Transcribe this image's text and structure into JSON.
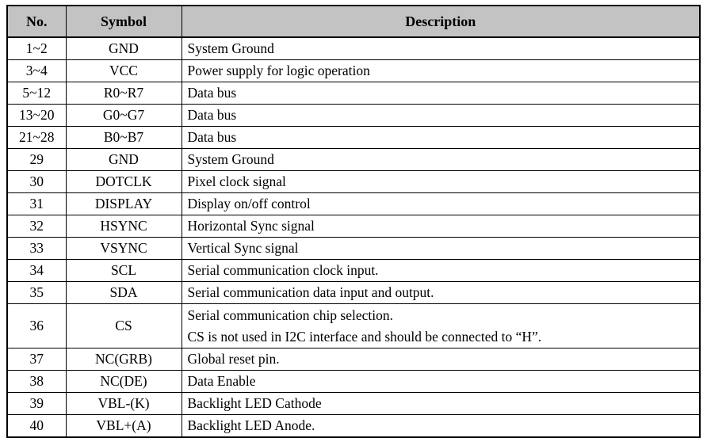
{
  "colors": {
    "page_bg": "#ffffff",
    "header_bg": "#c3c3c3",
    "border": "#000000",
    "text": "#000000"
  },
  "table": {
    "columns": [
      {
        "key": "no",
        "label": "No."
      },
      {
        "key": "symbol",
        "label": "Symbol"
      },
      {
        "key": "description",
        "label": "Description"
      }
    ],
    "rows": [
      {
        "no": "1~2",
        "symbol": "GND",
        "description": [
          "System Ground"
        ]
      },
      {
        "no": "3~4",
        "symbol": "VCC",
        "description": [
          "Power supply for logic operation"
        ]
      },
      {
        "no": "5~12",
        "symbol": "R0~R7",
        "description": [
          "Data bus"
        ]
      },
      {
        "no": "13~20",
        "symbol": "G0~G7",
        "description": [
          "Data bus"
        ]
      },
      {
        "no": "21~28",
        "symbol": "B0~B7",
        "description": [
          "Data bus"
        ]
      },
      {
        "no": "29",
        "symbol": "GND",
        "description": [
          "System Ground"
        ]
      },
      {
        "no": "30",
        "symbol": "DOTCLK",
        "description": [
          "Pixel clock signal"
        ]
      },
      {
        "no": "31",
        "symbol": "DISPLAY",
        "description": [
          "Display on/off control"
        ]
      },
      {
        "no": "32",
        "symbol": "HSYNC",
        "description": [
          "Horizontal Sync signal"
        ]
      },
      {
        "no": "33",
        "symbol": "VSYNC",
        "description": [
          "Vertical Sync signal"
        ]
      },
      {
        "no": "34",
        "symbol": "SCL",
        "description": [
          "Serial communication clock input."
        ]
      },
      {
        "no": "35",
        "symbol": "SDA",
        "description": [
          "Serial communication data input and output."
        ]
      },
      {
        "no": "36",
        "symbol": "CS",
        "description": [
          "Serial communication chip selection.",
          "CS is not used in I2C interface and should be connected to “H”."
        ]
      },
      {
        "no": "37",
        "symbol": "NC(GRB)",
        "description": [
          "Global reset pin."
        ]
      },
      {
        "no": "38",
        "symbol": "NC(DE)",
        "description": [
          "Data Enable"
        ]
      },
      {
        "no": "39",
        "symbol": "VBL-(K)",
        "description": [
          "Backlight LED Cathode"
        ]
      },
      {
        "no": "40",
        "symbol": "VBL+(A)",
        "description": [
          "Backlight LED Anode."
        ]
      }
    ]
  }
}
